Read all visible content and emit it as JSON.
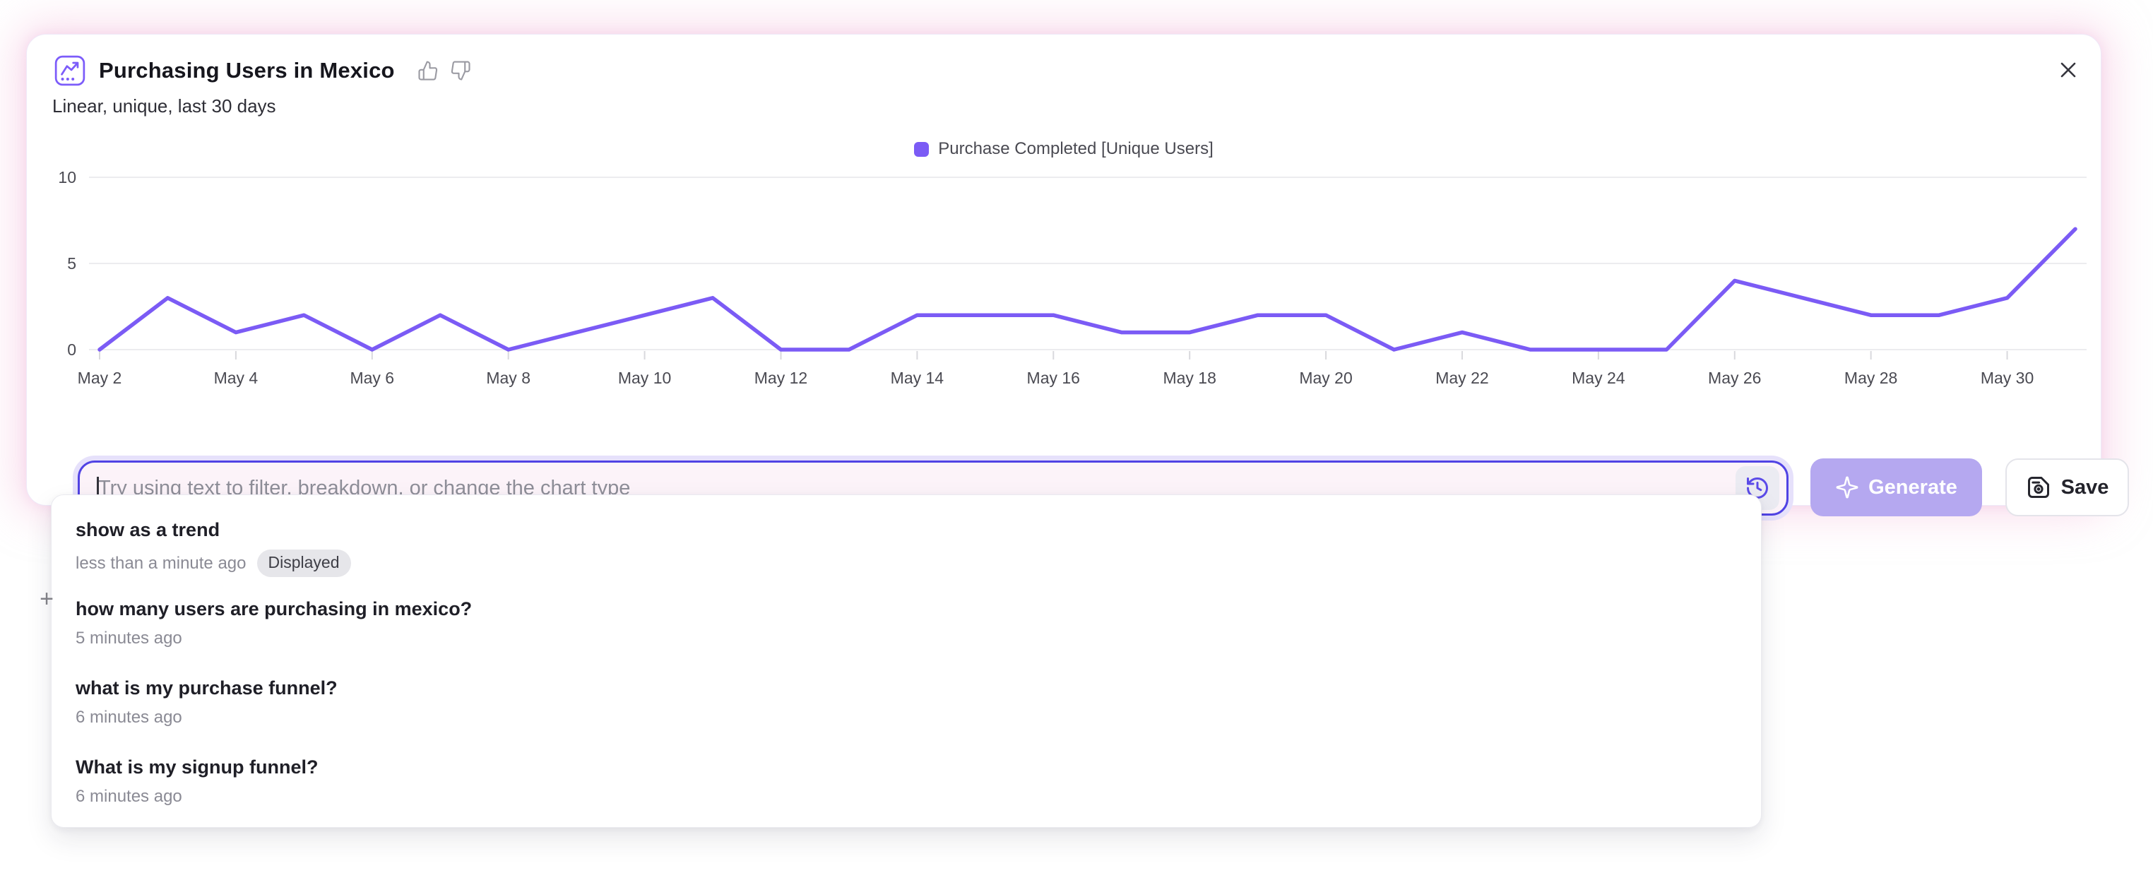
{
  "header": {
    "title": "Purchasing Users in Mexico",
    "subtitle": "Linear, unique, last 30 days"
  },
  "chart_data": {
    "type": "line",
    "title": "Purchasing Users in Mexico",
    "legend_position": "top-center",
    "grid": "horizontal",
    "ylim": [
      0,
      10
    ],
    "yticks": [
      0,
      5,
      10
    ],
    "categories": [
      "May 2",
      "May 3",
      "May 4",
      "May 5",
      "May 6",
      "May 7",
      "May 8",
      "May 9",
      "May 10",
      "May 11",
      "May 12",
      "May 13",
      "May 14",
      "May 15",
      "May 16",
      "May 17",
      "May 18",
      "May 19",
      "May 20",
      "May 21",
      "May 22",
      "May 23",
      "May 24",
      "May 25",
      "May 26",
      "May 27",
      "May 28",
      "May 29",
      "May 30",
      "May 31"
    ],
    "x_tick_label_every": 2,
    "series": [
      {
        "name": "Purchase Completed [Unique Users]",
        "color": "#7b5bf5",
        "values": [
          0,
          3,
          1,
          2,
          0,
          2,
          0,
          1,
          2,
          3,
          0,
          0,
          2,
          2,
          2,
          1,
          1,
          2,
          2,
          0,
          1,
          0,
          0,
          0,
          4,
          3,
          2,
          2,
          3,
          7
        ]
      }
    ]
  },
  "prompt": {
    "placeholder": "Try using text to filter, breakdown, or change the chart type",
    "value": ""
  },
  "actions": {
    "generate_label": "Generate",
    "save_label": "Save"
  },
  "history_dropdown": {
    "items": [
      {
        "query": "show as a trend",
        "time": "less than a minute ago",
        "badge": "Displayed"
      },
      {
        "query": "how many users are purchasing in mexico?",
        "time": "5 minutes ago"
      },
      {
        "query": "what is my purchase funnel?",
        "time": "6 minutes ago"
      },
      {
        "query": "What is my signup funnel?",
        "time": "6 minutes ago"
      }
    ]
  },
  "cursor_artifact": "+",
  "colors": {
    "accent_purple": "#7b5bf5",
    "input_border": "#5143e4",
    "focus_ring": "#e6e1fb",
    "generate_bg": "#b5a8f0",
    "card_glow_pink": "#f6bcdb",
    "badge_bg": "#e6e6ea"
  }
}
